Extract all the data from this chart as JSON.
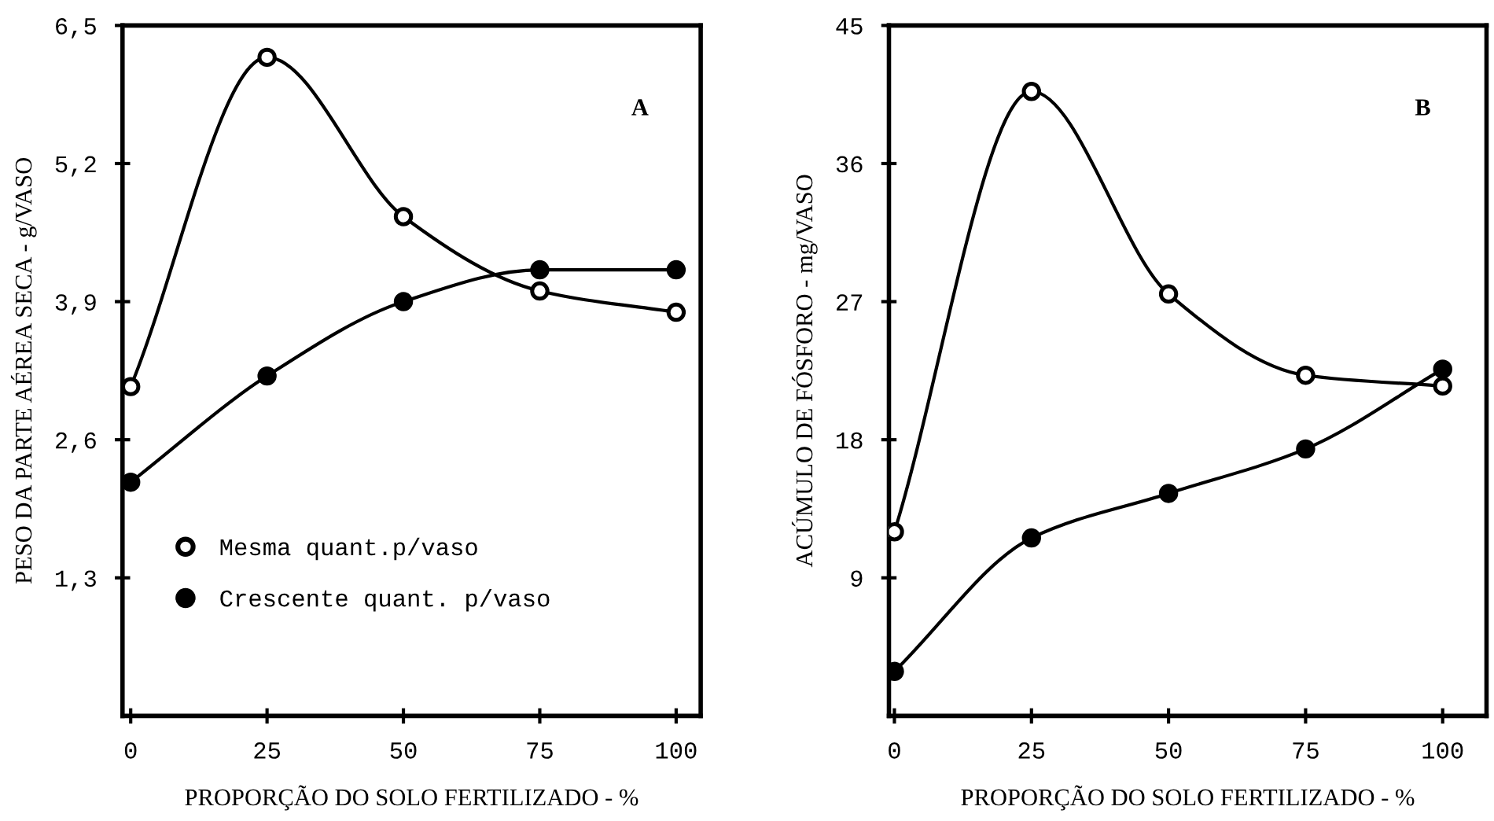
{
  "chart_data": [
    {
      "type": "line",
      "x": [
        0,
        25,
        50,
        75,
        100
      ],
      "xlim": [
        -1.5,
        104.5
      ],
      "xticks": [
        0,
        25,
        50,
        75,
        100
      ],
      "ylim": [
        0,
        6.5
      ],
      "yticks": [
        {
          "value": 1.3,
          "label": "1,3"
        },
        {
          "value": 2.6,
          "label": "2,6"
        },
        {
          "value": 3.9,
          "label": "3,9"
        },
        {
          "value": 5.2,
          "label": "5,2"
        },
        {
          "value": 6.5,
          "label": "6,5"
        }
      ],
      "xlabel": "PROPORÇÃO DO SOLO FERTILIZADO - %",
      "ylabel": "PESO DA PARTE AÉREA SECA - g/VASO",
      "annotations": [
        "A"
      ],
      "legend": "bottom left",
      "marker": "circle",
      "grid": false,
      "series": [
        {
          "name": "Mesma quant.p/vaso",
          "color": "#000000",
          "values": [
            3.1,
            6.2,
            4.7,
            4.0,
            3.8
          ]
        },
        {
          "name": "Crescente quant. p/vaso",
          "color": "#000000",
          "values": [
            2.2,
            3.2,
            3.9,
            4.2,
            4.2
          ]
        }
      ]
    },
    {
      "type": "line",
      "x": [
        0,
        25,
        50,
        75,
        100
      ],
      "xlim": [
        -1,
        108
      ],
      "xticks": [
        0,
        25,
        50,
        75,
        100
      ],
      "ylim": [
        0,
        45
      ],
      "yticks": [
        9,
        18,
        27,
        36,
        45
      ],
      "xlabel": "PROPORÇÃO DO SOLO FERTILIZADO - %",
      "ylabel": "ACÚMULO DE FÓSFORO - mg/VASO",
      "annotations": [
        "B"
      ],
      "marker": "circle",
      "grid": false,
      "series": [
        {
          "color": "#000000",
          "values": [
            12,
            40.7,
            27.5,
            22.2,
            21.5
          ]
        },
        {
          "color": "#000000",
          "values": [
            2.9,
            11.6,
            14.5,
            17.4,
            22.6
          ]
        }
      ]
    }
  ]
}
